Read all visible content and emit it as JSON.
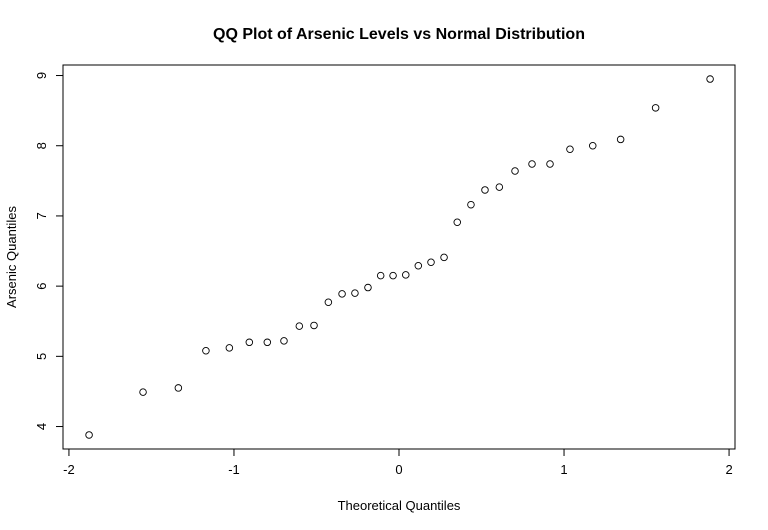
{
  "chart_data": {
    "type": "scatter",
    "title": "QQ Plot of Arsenic Levels vs Normal Distribution",
    "xlabel": "Theoretical Quantiles",
    "ylabel": "Arsenic Quantiles",
    "xlim": [
      -2.036,
      2.036
    ],
    "ylim": [
      3.68,
      9.15
    ],
    "xticks": [
      -2,
      -1,
      0,
      1,
      2
    ],
    "yticks": [
      4,
      5,
      6,
      7,
      8,
      9
    ],
    "xtick_labels": [
      "-2",
      "-1",
      "0",
      "1",
      "2"
    ],
    "ytick_labels": [
      "4",
      "5",
      "6",
      "7",
      "8",
      "9"
    ],
    "grid": false,
    "marker": "open-circle",
    "points": [
      [
        -1.878,
        3.88
      ],
      [
        -1.551,
        4.49
      ],
      [
        -1.337,
        4.55
      ],
      [
        -1.17,
        5.08
      ],
      [
        -1.028,
        5.12
      ],
      [
        -0.907,
        5.2
      ],
      [
        -0.798,
        5.2
      ],
      [
        -0.697,
        5.22
      ],
      [
        -0.604,
        5.43
      ],
      [
        -0.515,
        5.44
      ],
      [
        -0.428,
        5.77
      ],
      [
        -0.345,
        5.89
      ],
      [
        -0.267,
        5.9
      ],
      [
        -0.188,
        5.98
      ],
      [
        -0.111,
        6.15
      ],
      [
        -0.036,
        6.15
      ],
      [
        0.041,
        6.16
      ],
      [
        0.117,
        6.29
      ],
      [
        0.194,
        6.34
      ],
      [
        0.273,
        6.41
      ],
      [
        0.353,
        6.91
      ],
      [
        0.436,
        7.16
      ],
      [
        0.521,
        7.37
      ],
      [
        0.608,
        7.41
      ],
      [
        0.703,
        7.64
      ],
      [
        0.806,
        7.74
      ],
      [
        0.915,
        7.74
      ],
      [
        1.036,
        7.95
      ],
      [
        1.174,
        8.0
      ],
      [
        1.343,
        8.09
      ],
      [
        1.555,
        8.54
      ],
      [
        1.885,
        8.95
      ]
    ]
  }
}
